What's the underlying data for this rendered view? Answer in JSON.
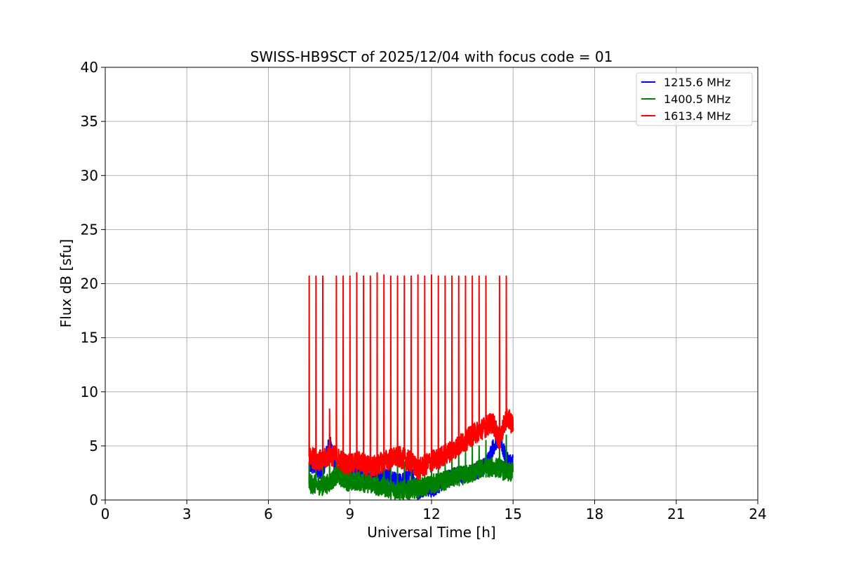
{
  "chart_data": {
    "type": "line",
    "title": "SWISS-HB9SCT of 2025/12/04 with focus code = 01",
    "xlabel": "Universal Time [h]",
    "ylabel": "Flux dB [sfu]",
    "xlim": [
      0,
      24
    ],
    "ylim": [
      0,
      40
    ],
    "xticks": [
      0,
      3,
      6,
      9,
      12,
      15,
      18,
      21,
      24
    ],
    "yticks": [
      0,
      5,
      10,
      15,
      20,
      25,
      30,
      35,
      40
    ],
    "grid": true,
    "legend_position": "top-right",
    "spike_times": [
      7.5,
      7.75,
      8.0,
      8.25,
      8.5,
      8.75,
      9.0,
      9.25,
      9.5,
      9.75,
      10.0,
      10.25,
      10.5,
      10.75,
      11.0,
      11.25,
      11.5,
      11.75,
      12.0,
      12.25,
      12.5,
      12.75,
      13.0,
      13.25,
      13.5,
      13.75,
      14.0,
      14.5,
      14.75
    ],
    "series": [
      {
        "name": "1215.6 MHz",
        "color": "#0000ff",
        "x": [
          7.5,
          7.75,
          8.0,
          8.25,
          8.5,
          8.75,
          9.0,
          9.25,
          9.5,
          9.75,
          10.0,
          10.25,
          10.5,
          10.75,
          11.0,
          11.25,
          11.5,
          11.75,
          12.0,
          12.25,
          12.5,
          12.75,
          13.0,
          13.25,
          13.5,
          13.75,
          14.0,
          14.25,
          14.5,
          14.75,
          15.0
        ],
        "values": [
          3.2,
          3.0,
          2.6,
          5.4,
          2.6,
          2.4,
          2.3,
          2.2,
          2.6,
          2.1,
          1.8,
          2.4,
          2.0,
          1.6,
          1.8,
          2.6,
          0.8,
          1.2,
          1.0,
          1.4,
          1.8,
          2.2,
          2.4,
          2.3,
          2.5,
          2.8,
          3.2,
          4.8,
          6.0,
          3.6,
          3.5
        ],
        "noise": 0.8,
        "spike_peaks": []
      },
      {
        "name": "1400.5 MHz",
        "color": "#008000",
        "x": [
          7.5,
          7.75,
          8.0,
          8.25,
          8.5,
          8.75,
          9.0,
          9.25,
          9.5,
          9.75,
          10.0,
          10.25,
          10.5,
          10.75,
          11.0,
          11.25,
          11.5,
          11.75,
          12.0,
          12.25,
          12.5,
          12.75,
          13.0,
          13.25,
          13.5,
          13.75,
          14.0,
          14.25,
          14.5,
          14.75,
          15.0
        ],
        "values": [
          1.5,
          1.4,
          1.3,
          1.6,
          2.3,
          2.0,
          1.6,
          1.8,
          1.6,
          1.5,
          1.3,
          1.2,
          1.0,
          0.9,
          0.9,
          1.0,
          1.1,
          1.2,
          1.5,
          1.6,
          1.8,
          2.0,
          2.2,
          2.3,
          2.5,
          2.8,
          3.0,
          3.0,
          3.0,
          2.5,
          2.6
        ],
        "noise": 0.9,
        "spike_peaks": [
          3.5,
          3.5,
          3.5,
          3.5,
          3.5,
          3.5,
          3.5,
          3.5,
          3.5,
          3.5,
          3.5,
          3.5,
          3.5,
          3.5,
          3.5,
          3.5,
          3.5,
          3.5,
          3.5,
          3.5,
          3.5,
          4.0,
          4.5,
          4.5,
          5.0,
          5.0,
          5.5,
          5.5,
          6.0
        ]
      },
      {
        "name": "1613.4 MHz",
        "color": "#ff0000",
        "x": [
          7.5,
          7.75,
          8.0,
          8.25,
          8.5,
          8.75,
          9.0,
          9.25,
          9.5,
          9.75,
          10.0,
          10.25,
          10.5,
          10.75,
          11.0,
          11.25,
          11.5,
          11.75,
          12.0,
          12.25,
          12.5,
          12.75,
          13.0,
          13.25,
          13.5,
          13.75,
          14.0,
          14.25,
          14.5,
          14.75,
          15.0
        ],
        "values": [
          4.0,
          3.8,
          3.6,
          4.2,
          4.0,
          3.5,
          3.2,
          3.6,
          3.4,
          3.0,
          3.2,
          3.6,
          3.8,
          4.0,
          3.8,
          3.5,
          2.8,
          3.2,
          3.6,
          3.8,
          4.2,
          4.6,
          5.0,
          5.5,
          6.0,
          6.4,
          6.8,
          7.2,
          5.5,
          7.6,
          7.0
        ],
        "noise": 1.0,
        "spike_peaks": [
          20.7,
          20.7,
          20.7,
          8.4,
          20.7,
          20.7,
          20.7,
          21.0,
          20.7,
          20.7,
          21.0,
          20.8,
          20.7,
          20.7,
          20.7,
          20.7,
          20.8,
          20.7,
          20.8,
          20.7,
          20.7,
          20.7,
          20.7,
          20.7,
          20.7,
          20.7,
          20.7,
          20.7,
          20.7
        ]
      }
    ]
  }
}
